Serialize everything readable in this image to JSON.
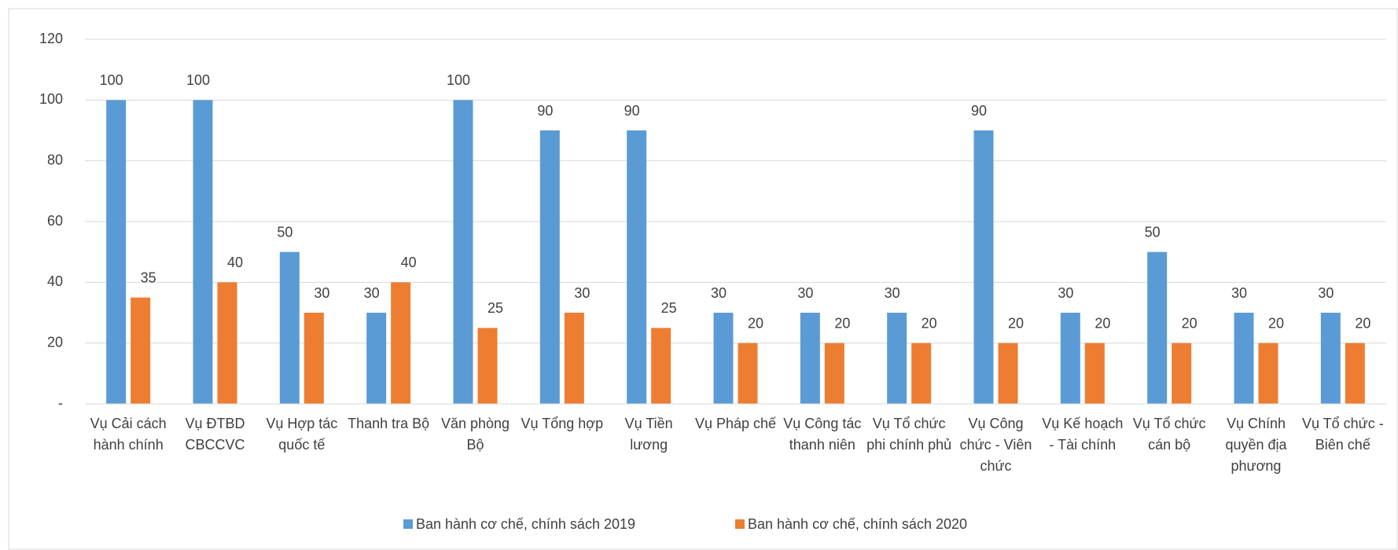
{
  "chart_data": {
    "type": "bar",
    "categories": [
      "Vụ Cải cách hành chính",
      "Vụ ĐTBD CBCCVC",
      "Vụ Hợp tác quốc tế",
      "Thanh tra Bộ",
      "Văn phòng Bộ",
      "Vụ Tổng hợp",
      "Vụ Tiền lương",
      "Vụ Pháp chế",
      "Vụ Công tác thanh niên",
      "Vụ Tổ chức phi chính phủ",
      "Vụ Công chức - Viên chức",
      "Vụ Kế hoạch - Tài chính",
      "Vụ Tổ chức cán bộ",
      "Vụ Chính quyền địa phương",
      "Vụ Tổ chức - Biên chế"
    ],
    "series": [
      {
        "name": "Ban hành cơ chế, chính sách 2019",
        "color": "#5b9bd5",
        "values": [
          100,
          100,
          50,
          30,
          100,
          90,
          90,
          30,
          30,
          30,
          90,
          30,
          50,
          30,
          30
        ]
      },
      {
        "name": "Ban hành cơ chế, chính sách 2020",
        "color": "#ed7d31",
        "values": [
          35,
          40,
          30,
          40,
          25,
          30,
          25,
          20,
          20,
          20,
          20,
          20,
          20,
          20,
          20
        ]
      }
    ],
    "ylim": [
      0,
      120
    ],
    "yticks": [
      {
        "value": 0,
        "label": "-"
      },
      20,
      40,
      60,
      80,
      100,
      120
    ],
    "grid": true,
    "legend": "bottom"
  }
}
